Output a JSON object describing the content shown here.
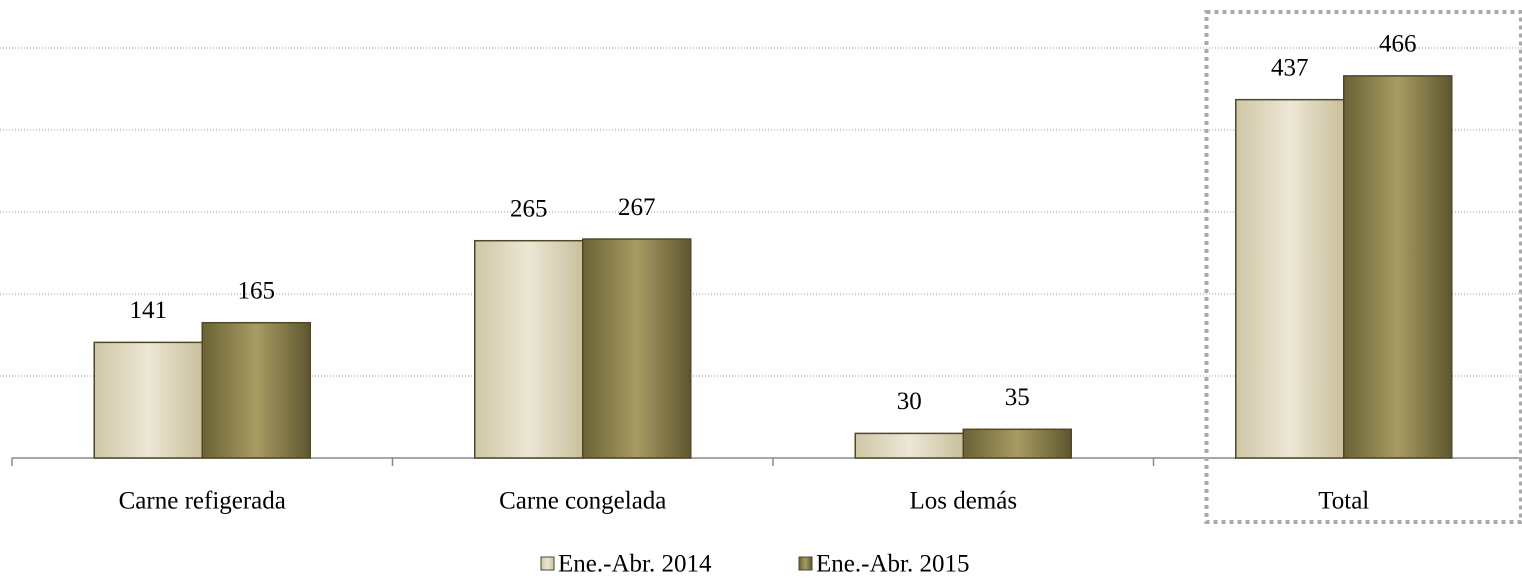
{
  "chart_data": {
    "type": "bar",
    "categories": [
      "Carne refigerada",
      "Carne congelada",
      "Los demás",
      "Total"
    ],
    "series": [
      {
        "name": "Ene.-Abr. 2014",
        "color": "#ddd6bb",
        "values": [
          141,
          265,
          30,
          437
        ]
      },
      {
        "name": "Ene.-Abr. 2015",
        "color": "#9a8f58",
        "values": [
          165,
          267,
          35,
          466
        ]
      }
    ],
    "ylim": [
      0,
      500
    ],
    "yticks": [
      0,
      100,
      200,
      300,
      400,
      500
    ],
    "grid": true
  }
}
